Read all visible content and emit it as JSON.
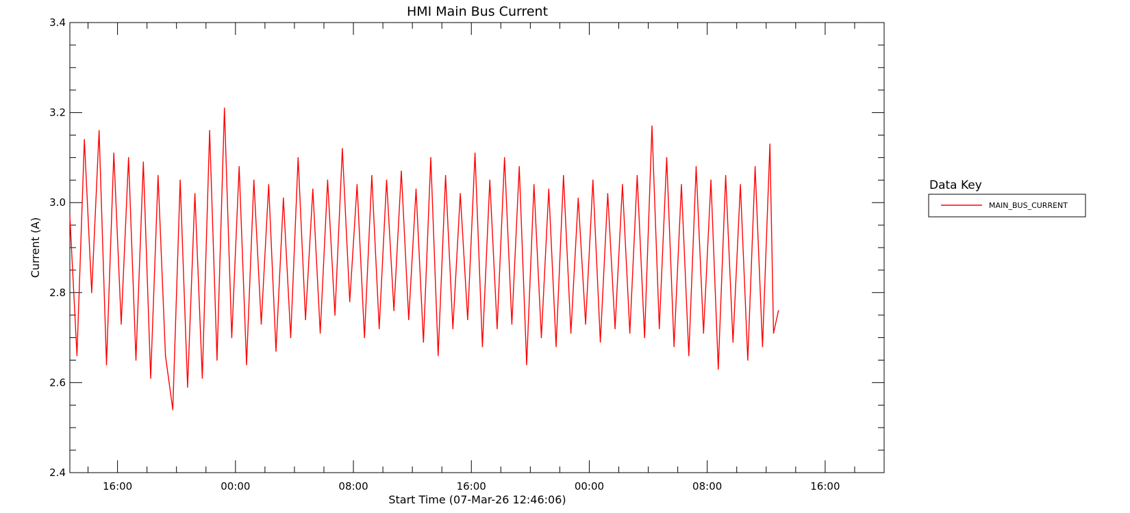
{
  "chart_data": {
    "type": "line",
    "title": "HMI Main Bus Current",
    "xlabel": "Start Time (07-Mar-26 12:46:06)",
    "ylabel": "Current (A)",
    "ylim": [
      2.4,
      3.4
    ],
    "yticks": [
      "2.4",
      "2.6",
      "2.8",
      "3.0",
      "3.2",
      "3.4"
    ],
    "xlim": [
      "2026-03-07 12:46",
      "2026-03-09 20:00"
    ],
    "xticks": [
      {
        "time": "2026-03-07 16:00",
        "label": "16:00"
      },
      {
        "time": "2026-03-08 00:00",
        "label": "00:00"
      },
      {
        "time": "2026-03-08 08:00",
        "label": "08:00"
      },
      {
        "time": "2026-03-08 16:00",
        "label": "16:00"
      },
      {
        "time": "2026-03-09 00:00",
        "label": "00:00"
      },
      {
        "time": "2026-03-09 08:00",
        "label": "08:00"
      },
      {
        "time": "2026-03-09 16:00",
        "label": "16:00"
      }
    ],
    "grid": false,
    "legend": {
      "title": "Data Key",
      "position": "right"
    },
    "series": [
      {
        "name": "MAIN_BUS_CURRENT",
        "color": "#ff0000",
        "x": [
          "2026-03-07 12:46",
          "2026-03-07 13:15",
          "2026-03-07 13:45",
          "2026-03-07 14:15",
          "2026-03-07 14:45",
          "2026-03-07 15:15",
          "2026-03-07 15:45",
          "2026-03-07 16:15",
          "2026-03-07 16:45",
          "2026-03-07 17:15",
          "2026-03-07 17:45",
          "2026-03-07 18:15",
          "2026-03-07 18:45",
          "2026-03-07 19:15",
          "2026-03-07 19:45",
          "2026-03-07 20:15",
          "2026-03-07 20:45",
          "2026-03-07 21:15",
          "2026-03-07 21:45",
          "2026-03-07 22:15",
          "2026-03-07 22:45",
          "2026-03-07 23:15",
          "2026-03-07 23:45",
          "2026-03-08 00:15",
          "2026-03-08 00:45",
          "2026-03-08 01:15",
          "2026-03-08 01:45",
          "2026-03-08 02:15",
          "2026-03-08 02:45",
          "2026-03-08 03:15",
          "2026-03-08 03:45",
          "2026-03-08 04:15",
          "2026-03-08 04:45",
          "2026-03-08 05:15",
          "2026-03-08 05:45",
          "2026-03-08 06:15",
          "2026-03-08 06:45",
          "2026-03-08 07:15",
          "2026-03-08 07:45",
          "2026-03-08 08:15",
          "2026-03-08 08:45",
          "2026-03-08 09:15",
          "2026-03-08 09:45",
          "2026-03-08 10:15",
          "2026-03-08 10:45",
          "2026-03-08 11:15",
          "2026-03-08 11:45",
          "2026-03-08 12:15",
          "2026-03-08 12:45",
          "2026-03-08 13:15",
          "2026-03-08 13:45",
          "2026-03-08 14:15",
          "2026-03-08 14:45",
          "2026-03-08 15:15",
          "2026-03-08 15:45",
          "2026-03-08 16:15",
          "2026-03-08 16:45",
          "2026-03-08 17:15",
          "2026-03-08 17:45",
          "2026-03-08 18:15",
          "2026-03-08 18:45",
          "2026-03-08 19:15",
          "2026-03-08 19:45",
          "2026-03-08 20:15",
          "2026-03-08 20:45",
          "2026-03-08 21:15",
          "2026-03-08 21:45",
          "2026-03-08 22:15",
          "2026-03-08 22:45",
          "2026-03-08 23:15",
          "2026-03-08 23:45",
          "2026-03-09 00:15",
          "2026-03-09 00:45",
          "2026-03-09 01:15",
          "2026-03-09 01:45",
          "2026-03-09 02:15",
          "2026-03-09 02:45",
          "2026-03-09 03:15",
          "2026-03-09 03:45",
          "2026-03-09 04:15",
          "2026-03-09 04:45",
          "2026-03-09 05:15",
          "2026-03-09 05:45",
          "2026-03-09 06:15",
          "2026-03-09 06:45",
          "2026-03-09 07:15",
          "2026-03-09 07:45",
          "2026-03-09 08:15",
          "2026-03-09 08:45",
          "2026-03-09 09:15",
          "2026-03-09 09:45",
          "2026-03-09 10:15",
          "2026-03-09 10:45",
          "2026-03-09 11:15",
          "2026-03-09 11:45",
          "2026-03-09 12:15",
          "2026-03-09 12:30",
          "2026-03-09 12:50"
        ],
        "y": [
          2.97,
          2.66,
          3.14,
          2.8,
          3.16,
          2.64,
          3.11,
          2.73,
          3.1,
          2.65,
          3.09,
          2.61,
          3.06,
          2.66,
          2.54,
          3.05,
          2.59,
          3.02,
          2.61,
          3.16,
          2.65,
          3.21,
          2.7,
          3.08,
          2.64,
          3.05,
          2.73,
          3.04,
          2.67,
          3.01,
          2.7,
          3.1,
          2.74,
          3.03,
          2.71,
          3.05,
          2.75,
          3.12,
          2.78,
          3.04,
          2.7,
          3.06,
          2.72,
          3.05,
          2.76,
          3.07,
          2.74,
          3.03,
          2.69,
          3.1,
          2.66,
          3.06,
          2.72,
          3.02,
          2.74,
          3.11,
          2.68,
          3.05,
          2.72,
          3.1,
          2.73,
          3.08,
          2.64,
          3.04,
          2.7,
          3.03,
          2.68,
          3.06,
          2.71,
          3.01,
          2.73,
          3.05,
          2.69,
          3.02,
          2.72,
          3.04,
          2.71,
          3.06,
          2.7,
          3.17,
          2.72,
          3.1,
          2.68,
          3.04,
          2.66,
          3.08,
          2.71,
          3.05,
          2.63,
          3.06,
          2.69,
          3.04,
          2.65,
          3.08,
          2.68,
          3.13,
          2.71,
          2.76
        ]
      }
    ]
  }
}
